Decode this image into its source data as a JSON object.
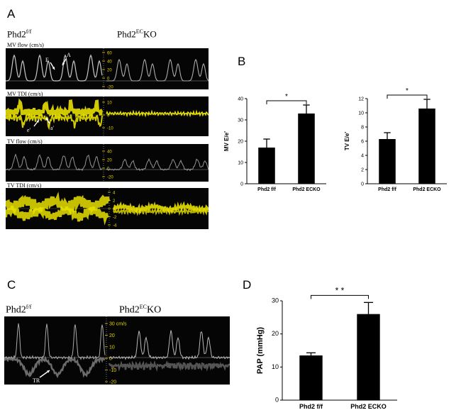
{
  "panels": {
    "a": {
      "letter": "A",
      "group_left": "Phd2",
      "group_left_sup": "f/f",
      "group_right": "Phd2",
      "group_right_sup": "EC",
      "group_right_suffix": "KO",
      "strips": [
        {
          "label": "MV flow (cm/s)",
          "ticks": [
            "60",
            "40",
            "20",
            "0",
            "-20"
          ],
          "color": "#c8c8c8",
          "annotations": [
            "E",
            "A"
          ]
        },
        {
          "label": "MV TDI (cm/s)",
          "ticks": [
            "10",
            "0",
            "-10"
          ],
          "color": "#e8e000",
          "annotations": [
            "e'",
            "a'"
          ]
        },
        {
          "label": "TV flow (cm/s)",
          "ticks": [
            "40",
            "20",
            "0",
            "-20"
          ],
          "color": "#b8b8b8",
          "annotations": []
        },
        {
          "label": "TV TDI (cm/s)",
          "ticks": [
            "4",
            "2",
            "0",
            "-2",
            "-4"
          ],
          "color": "#e8e000",
          "annotations": []
        }
      ]
    },
    "b": {
      "letter": "B"
    },
    "c": {
      "letter": "C",
      "group_left": "Phd2",
      "group_left_sup": "f/f",
      "group_right": "Phd2",
      "group_right_sup": "EC",
      "group_right_suffix": "KO",
      "ticks": [
        "30 cm/s",
        "20",
        "10",
        "0",
        "-10",
        "-20"
      ],
      "annotation": "TR"
    },
    "d": {
      "letter": "D"
    }
  },
  "chart_data": [
    {
      "type": "bar",
      "panel": "B-left",
      "categories": [
        "Phd2 f/f",
        "Phd2 ECKO"
      ],
      "values": [
        17,
        33
      ],
      "errors": [
        4,
        4
      ],
      "ylabel": "MV E/e'",
      "ylim": [
        0,
        40
      ],
      "yticks": [
        "0",
        "10",
        "20",
        "30",
        "40"
      ],
      "significance": "*",
      "bar_color": "#000000"
    },
    {
      "type": "bar",
      "panel": "B-right",
      "categories": [
        "Phd2 f/f",
        "Phd2 ECKO"
      ],
      "values": [
        6.3,
        10.6
      ],
      "errors": [
        0.9,
        1.3
      ],
      "ylabel": "TV E/e'",
      "ylim": [
        0,
        12
      ],
      "yticks": [
        "0",
        "2",
        "4",
        "6",
        "8",
        "10",
        "12"
      ],
      "significance": "*",
      "bar_color": "#000000"
    },
    {
      "type": "bar",
      "panel": "D",
      "categories": [
        "Phd2 f/f",
        "Phd2 ECKO"
      ],
      "values": [
        13.5,
        26
      ],
      "errors": [
        0.8,
        3.5
      ],
      "ylabel": "PAP (mmHg)",
      "ylim": [
        0,
        30
      ],
      "yticks": [
        "0",
        "10",
        "20",
        "30"
      ],
      "significance": "* *",
      "bar_color": "#000000"
    }
  ]
}
